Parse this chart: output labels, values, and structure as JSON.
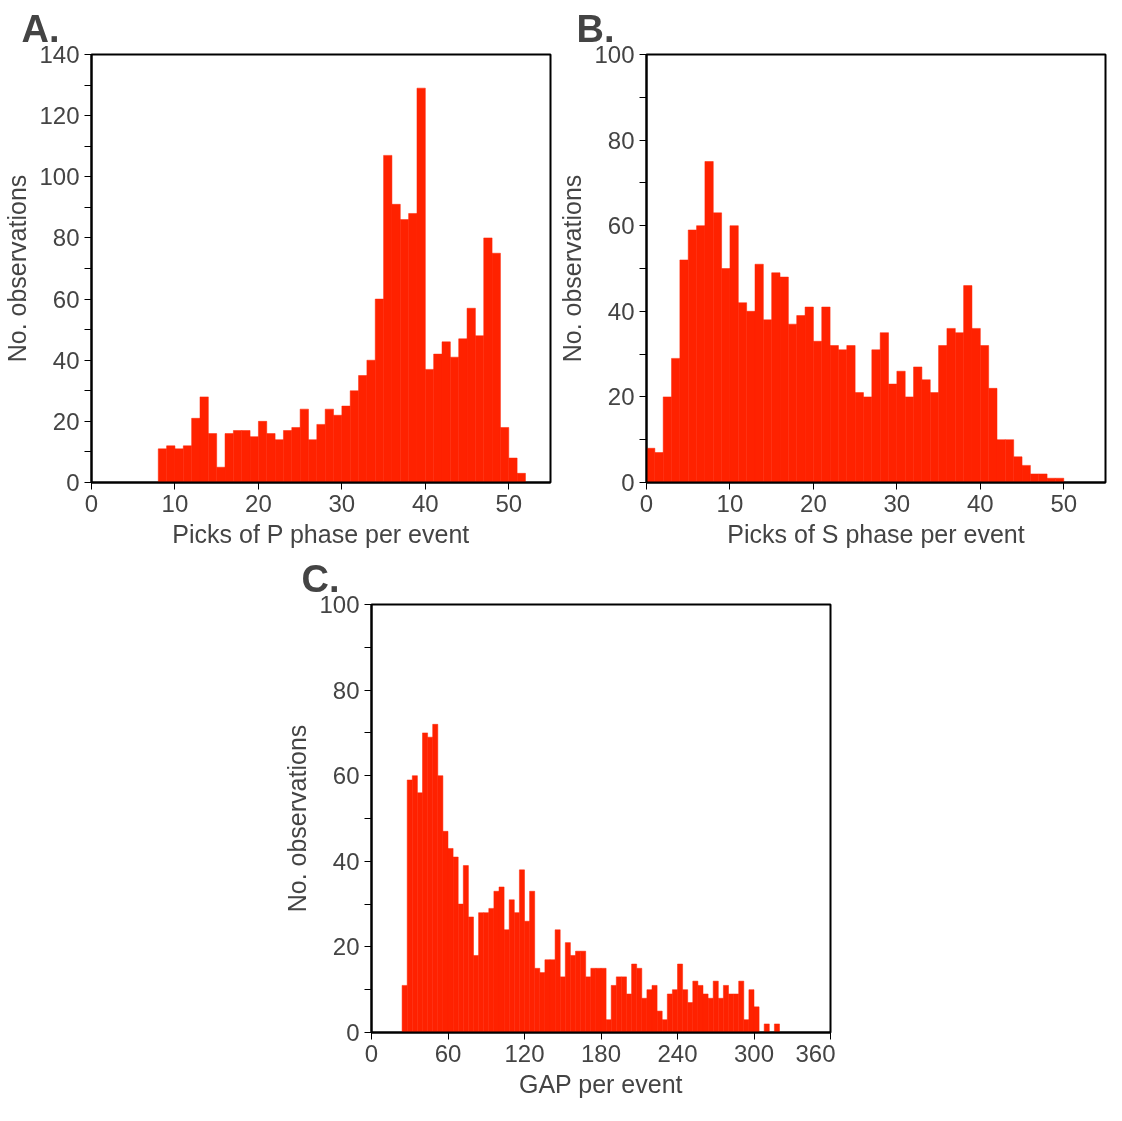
{
  "chart_data": [
    {
      "type": "histogram",
      "title": "A.",
      "xlabel": "Picks of P phase per event",
      "ylabel": "No. observations",
      "color": "#ff2200",
      "xlim": [
        0,
        55
      ],
      "ylim": [
        0,
        140
      ],
      "xticks": [
        0,
        10,
        20,
        30,
        40,
        50
      ],
      "yticks": [
        0,
        {
          "value": 10,
          "label": null
        },
        20,
        {
          "value": 30,
          "label": null
        },
        40,
        {
          "value": 50,
          "label": null
        },
        60,
        {
          "value": 70,
          "label": null
        },
        80,
        {
          "value": 90,
          "label": null
        },
        100,
        {
          "value": 110,
          "label": null
        },
        120,
        {
          "value": 130,
          "label": null
        },
        140
      ],
      "bins": [
        8,
        9,
        10,
        11,
        12,
        13,
        14,
        15,
        16,
        17,
        18,
        19,
        20,
        21,
        22,
        23,
        24,
        25,
        26,
        27,
        28,
        29,
        30,
        31,
        32,
        33,
        34,
        35,
        36,
        37,
        38,
        39,
        40,
        41,
        42,
        43,
        44,
        45,
        46,
        47,
        48,
        49,
        50,
        51,
        52
      ],
      "values": [
        11,
        12,
        11,
        12,
        21,
        28,
        16,
        5,
        16,
        17,
        17,
        15,
        20,
        16,
        14,
        17,
        18,
        24,
        14,
        19,
        24,
        22,
        25,
        30,
        35,
        40,
        60,
        107,
        91,
        86,
        88,
        129,
        37,
        42,
        46,
        41,
        47,
        57,
        48,
        80,
        75,
        18,
        8,
        3
      ]
    },
    {
      "type": "histogram",
      "title": "B.",
      "xlabel": "Picks of S phase per event",
      "ylabel": "No. observations",
      "color": "#ff2200",
      "xlim": [
        0,
        55
      ],
      "ylim": [
        0,
        100
      ],
      "xticks": [
        0,
        10,
        20,
        30,
        40,
        50
      ],
      "yticks": [
        0,
        {
          "value": 10,
          "label": null
        },
        20,
        {
          "value": 30,
          "label": null
        },
        40,
        {
          "value": 50,
          "label": null
        },
        60,
        {
          "value": 70,
          "label": null
        },
        80,
        {
          "value": 90,
          "label": null
        },
        100
      ],
      "bins": [
        0,
        1,
        2,
        3,
        4,
        5,
        6,
        7,
        8,
        9,
        10,
        11,
        12,
        13,
        14,
        15,
        16,
        17,
        18,
        19,
        20,
        21,
        22,
        23,
        24,
        25,
        26,
        27,
        28,
        29,
        30,
        31,
        32,
        33,
        34,
        35,
        36,
        37,
        38,
        39,
        40,
        41,
        42,
        43,
        44,
        45,
        46,
        47,
        48,
        49,
        50
      ],
      "values": [
        8,
        7,
        20,
        29,
        52,
        59,
        60,
        75,
        63,
        50,
        60,
        42,
        40,
        51,
        38,
        49,
        48,
        37,
        39,
        41,
        33,
        41,
        32,
        31,
        32,
        21,
        20,
        31,
        35,
        23,
        26,
        20,
        27,
        24,
        21,
        32,
        36,
        35,
        46,
        36,
        32,
        22,
        10,
        10,
        6,
        4,
        2,
        2,
        1,
        1
      ]
    },
    {
      "type": "histogram",
      "title": "C.",
      "xlabel": "GAP per event",
      "ylabel": "No. observations",
      "color": "#ff2200",
      "xlim": [
        0,
        360
      ],
      "ylim": [
        0,
        100
      ],
      "xticks": [
        0,
        60,
        120,
        180,
        240,
        300,
        360
      ],
      "yticks": [
        0,
        {
          "value": 10,
          "label": null
        },
        20,
        {
          "value": 30,
          "label": null
        },
        40,
        {
          "value": 50,
          "label": null
        },
        60,
        {
          "value": 70,
          "label": null
        },
        80,
        {
          "value": 90,
          "label": null
        },
        100
      ],
      "bins": [
        24,
        28,
        32,
        36,
        40,
        44,
        48,
        52,
        56,
        60,
        64,
        68,
        72,
        76,
        80,
        84,
        88,
        92,
        96,
        100,
        104,
        108,
        112,
        116,
        120,
        124,
        128,
        132,
        136,
        140,
        144,
        148,
        152,
        156,
        160,
        164,
        168,
        172,
        176,
        180,
        184,
        188,
        192,
        196,
        200,
        204,
        208,
        212,
        216,
        220,
        224,
        228,
        232,
        236,
        240,
        244,
        248,
        252,
        256,
        260,
        264,
        268,
        272,
        276,
        280,
        284,
        288,
        292,
        296,
        300,
        304,
        308,
        312,
        316,
        320
      ],
      "values": [
        11,
        59,
        60,
        56,
        70,
        69,
        72,
        60,
        47,
        43,
        41,
        30,
        39,
        27,
        18,
        28,
        28,
        29,
        33,
        34,
        24,
        31,
        28,
        38,
        26,
        33,
        15,
        14,
        17,
        17,
        24,
        13,
        21,
        18,
        19,
        19,
        13,
        15,
        15,
        15,
        3,
        11,
        13,
        13,
        9,
        16,
        15,
        8,
        10,
        11,
        5,
        3,
        9,
        10,
        16,
        10,
        7,
        12,
        11,
        9,
        8,
        12,
        8,
        11,
        9,
        9,
        12,
        3,
        10,
        6,
        0,
        2,
        0,
        2
      ]
    }
  ]
}
